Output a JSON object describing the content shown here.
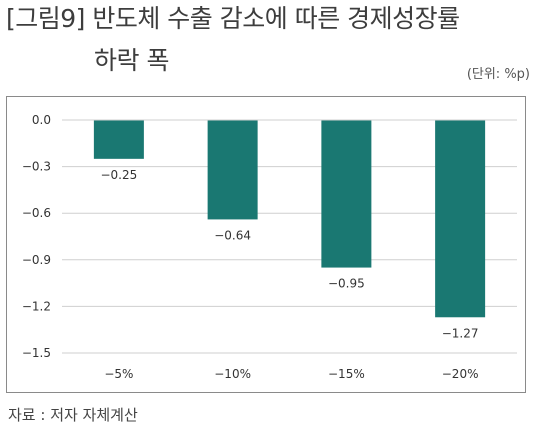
{
  "header": {
    "title_line1": "[그림9] 반도체 수출 감소에 따른 경제성장률",
    "title_line2": "하락 폭",
    "unit": "(단위: %p)"
  },
  "footer": {
    "source": "자료 : 저자 자체계산"
  },
  "colors": {
    "bar": "#1a7872",
    "grid": "#cfcfcf",
    "text": "#333333"
  },
  "chart_data": {
    "type": "bar",
    "categories": [
      "−5%",
      "−10%",
      "−15%",
      "−20%"
    ],
    "values": [
      -0.25,
      -0.64,
      -0.95,
      -1.27
    ],
    "value_labels": [
      "−0.25",
      "−0.64",
      "−0.95",
      "−1.27"
    ],
    "yticks": [
      0.0,
      -0.3,
      -0.6,
      -0.9,
      -1.2,
      -1.5
    ],
    "ytick_labels": [
      "0.0",
      "−0.3",
      "−0.6",
      "−0.9",
      "−1.2",
      "−1.5"
    ],
    "ylim": [
      -1.5,
      0.0
    ],
    "grid": true,
    "legend": false
  }
}
